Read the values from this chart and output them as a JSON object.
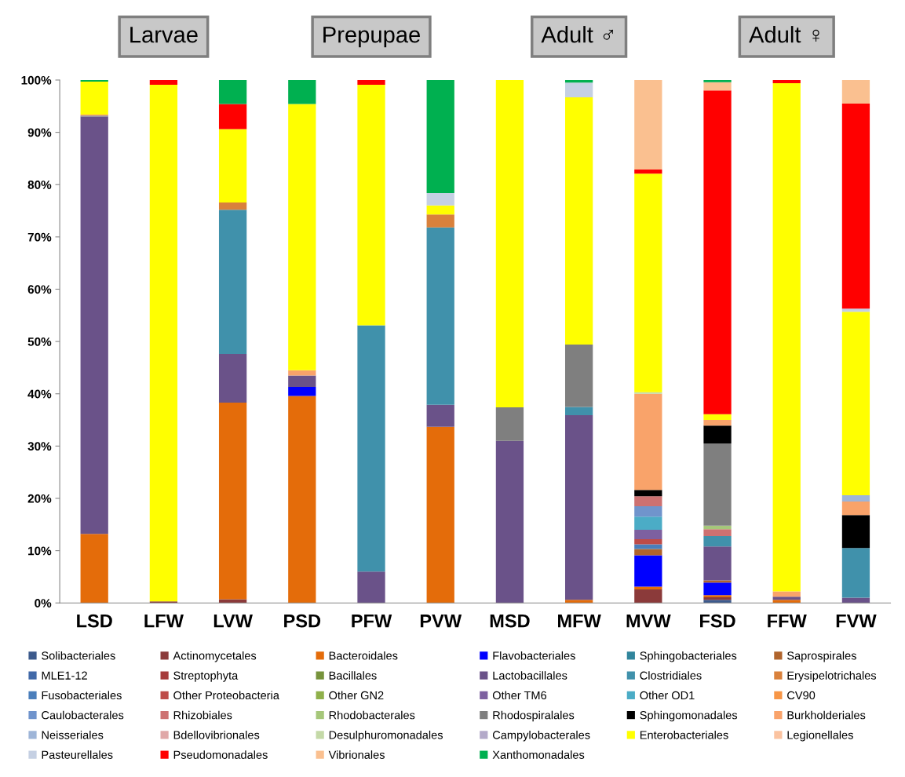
{
  "chart_data": {
    "type": "bar",
    "stacked": true,
    "categories": [
      "LSD",
      "LFW",
      "LVW",
      "PSD",
      "PFW",
      "PVW",
      "MSD",
      "MFW",
      "MVW",
      "FSD",
      "FFW",
      "FVW"
    ],
    "annotations": [
      "Larvae",
      "Prepupae",
      "Adult ♂",
      "Adult ♀"
    ],
    "ylim": [
      0,
      100
    ],
    "yticks": [
      {
        "value": 0,
        "label": "0%"
      },
      {
        "value": 10,
        "label": "10%"
      },
      {
        "value": 20,
        "label": "20%"
      },
      {
        "value": 30,
        "label": "30%"
      },
      {
        "value": 40,
        "label": "40%"
      },
      {
        "value": 50,
        "label": "50%"
      },
      {
        "value": 60,
        "label": "60%"
      },
      {
        "value": 70,
        "label": "70%"
      },
      {
        "value": 80,
        "label": "80%"
      },
      {
        "value": 90,
        "label": "90%"
      },
      {
        "value": 100,
        "label": "100%"
      }
    ],
    "grid": false,
    "legend": "bottom",
    "series": [
      {
        "name": "Solibacteriales",
        "color": "#3c5a8c",
        "values": [
          null,
          null,
          null,
          null,
          null,
          null,
          null,
          null,
          null,
          0.6,
          null,
          null
        ]
      },
      {
        "name": "Actinomycetales",
        "color": "#8b3a3a",
        "values": [
          null,
          0.3,
          0.7,
          null,
          null,
          null,
          null,
          null,
          2.6,
          0.5,
          null,
          null
        ]
      },
      {
        "name": "Bacteroidales",
        "color": "#e46c0a",
        "values": [
          13.2,
          null,
          37.6,
          39.6,
          null,
          33.7,
          null,
          0.6,
          0.5,
          0.4,
          0.6,
          null
        ]
      },
      {
        "name": "Flavobacteriales",
        "color": "#0000ff",
        "values": [
          null,
          null,
          null,
          1.7,
          null,
          null,
          null,
          null,
          6.0,
          2.4,
          null,
          null
        ]
      },
      {
        "name": "Sphingobacteriales",
        "color": "#31859c",
        "values": [
          null,
          null,
          null,
          null,
          null,
          null,
          null,
          null,
          null,
          null,
          null,
          null
        ]
      },
      {
        "name": "Saprospirales",
        "color": "#b0642c",
        "values": [
          null,
          null,
          null,
          null,
          null,
          null,
          null,
          null,
          1.2,
          0.4,
          null,
          null
        ]
      },
      {
        "name": "MLE1-12",
        "color": "#4169a8",
        "values": [
          null,
          null,
          null,
          null,
          null,
          null,
          null,
          null,
          null,
          null,
          null,
          null
        ]
      },
      {
        "name": "Streptophyta",
        "color": "#a63c3c",
        "values": [
          null,
          null,
          null,
          null,
          null,
          null,
          null,
          null,
          null,
          null,
          null,
          null
        ]
      },
      {
        "name": "Bacillales",
        "color": "#77933c",
        "values": [
          null,
          null,
          null,
          null,
          null,
          null,
          null,
          null,
          null,
          null,
          null,
          null
        ]
      },
      {
        "name": "Lactobacillales",
        "color": "#6a5289",
        "values": [
          79.8,
          null,
          9.3,
          2.2,
          6.0,
          4.2,
          31.0,
          35.3,
          null,
          6.5,
          0.6,
          1.0
        ]
      },
      {
        "name": "Clostridiales",
        "color": "#4091ab",
        "values": [
          null,
          null,
          27.6,
          null,
          47.1,
          33.9,
          null,
          1.6,
          null,
          2.0,
          null,
          9.5
        ]
      },
      {
        "name": "Erysipelotrichales",
        "color": "#d9813c",
        "values": [
          null,
          null,
          1.4,
          null,
          null,
          2.5,
          null,
          null,
          null,
          null,
          null,
          null
        ]
      },
      {
        "name": "Fusobacteriales",
        "color": "#4a7ebb",
        "values": [
          null,
          null,
          null,
          null,
          null,
          null,
          null,
          null,
          0.9,
          null,
          null,
          null
        ]
      },
      {
        "name": "Other Proteobacteria",
        "color": "#be4b48",
        "values": [
          null,
          null,
          null,
          null,
          null,
          null,
          null,
          null,
          1.0,
          null,
          null,
          null
        ]
      },
      {
        "name": "Other GN2",
        "color": "#8fb04a",
        "values": [
          null,
          null,
          null,
          null,
          null,
          null,
          null,
          null,
          null,
          null,
          null,
          null
        ]
      },
      {
        "name": "Other TM6",
        "color": "#7d60a0",
        "values": [
          null,
          null,
          null,
          null,
          null,
          null,
          null,
          null,
          1.8,
          null,
          null,
          null
        ]
      },
      {
        "name": "Other OD1",
        "color": "#4bacc6",
        "values": [
          null,
          null,
          null,
          null,
          null,
          null,
          null,
          null,
          2.5,
          null,
          null,
          null
        ]
      },
      {
        "name": "CV90",
        "color": "#f79646",
        "values": [
          null,
          null,
          null,
          null,
          null,
          null,
          null,
          null,
          null,
          null,
          null,
          null
        ]
      },
      {
        "name": "Caulobacterales",
        "color": "#7094cc",
        "values": [
          null,
          null,
          null,
          null,
          null,
          null,
          null,
          null,
          2.0,
          null,
          null,
          null
        ]
      },
      {
        "name": "Rhizobiales",
        "color": "#cd7171",
        "values": [
          null,
          null,
          null,
          null,
          null,
          null,
          null,
          null,
          1.9,
          1.3,
          null,
          null
        ]
      },
      {
        "name": "Rhodobacterales",
        "color": "#a6c77a",
        "values": [
          null,
          null,
          null,
          null,
          null,
          null,
          null,
          null,
          null,
          0.7,
          null,
          null
        ]
      },
      {
        "name": "Rhodospiralales",
        "color": "#7f7f7f",
        "values": [
          0.2,
          null,
          null,
          null,
          null,
          null,
          6.4,
          11.9,
          null,
          15.7,
          null,
          null
        ]
      },
      {
        "name": "Sphingomonadales",
        "color": "#000000",
        "values": [
          null,
          null,
          null,
          null,
          null,
          null,
          null,
          null,
          1.2,
          3.4,
          null,
          6.3
        ]
      },
      {
        "name": "Burkholderiales",
        "color": "#f9a36a",
        "values": [
          0.2,
          null,
          null,
          1.0,
          null,
          null,
          null,
          null,
          18.4,
          1.1,
          1.0,
          2.6
        ]
      },
      {
        "name": "Neisseriales",
        "color": "#9eb5d8",
        "values": [
          null,
          null,
          null,
          null,
          null,
          null,
          null,
          null,
          null,
          null,
          null,
          1.2
        ]
      },
      {
        "name": "Bdellovibrionales",
        "color": "#e0a8a8",
        "values": [
          null,
          null,
          null,
          null,
          null,
          null,
          null,
          null,
          null,
          null,
          null,
          null
        ]
      },
      {
        "name": "Desulphuromonadales",
        "color": "#c4d9a7",
        "values": [
          null,
          null,
          null,
          null,
          null,
          null,
          null,
          null,
          0.3,
          null,
          null,
          null
        ]
      },
      {
        "name": "Campylobacterales",
        "color": "#b3a9c9",
        "values": [
          null,
          null,
          null,
          null,
          null,
          null,
          null,
          null,
          null,
          null,
          null,
          null
        ]
      },
      {
        "name": "Enterobacteriales",
        "color": "#ffff00",
        "values": [
          6.3,
          98.8,
          14.0,
          50.9,
          46.0,
          1.7,
          62.6,
          47.3,
          41.8,
          1.1,
          97.2,
          35.1
        ]
      },
      {
        "name": "Legionellales",
        "color": "#fbc3a0",
        "values": [
          null,
          null,
          null,
          null,
          null,
          null,
          null,
          null,
          null,
          null,
          null,
          null
        ]
      },
      {
        "name": "Pasteurellales",
        "color": "#c5d0e3",
        "values": [
          null,
          null,
          null,
          null,
          null,
          2.4,
          null,
          2.8,
          null,
          null,
          null,
          0.6
        ]
      },
      {
        "name": "Pseudomonadales",
        "color": "#ff0000",
        "values": [
          null,
          0.9,
          4.8,
          null,
          0.9,
          null,
          null,
          null,
          0.8,
          61.9,
          0.6,
          39.2
        ]
      },
      {
        "name": "Vibrionales",
        "color": "#fac090",
        "values": [
          null,
          null,
          null,
          null,
          null,
          null,
          null,
          null,
          17.1,
          1.6,
          null,
          4.5
        ]
      },
      {
        "name": "Xanthomonadales",
        "color": "#00b050",
        "values": [
          0.3,
          null,
          4.6,
          4.6,
          null,
          21.6,
          null,
          0.5,
          null,
          0.4,
          null,
          null
        ]
      }
    ]
  }
}
